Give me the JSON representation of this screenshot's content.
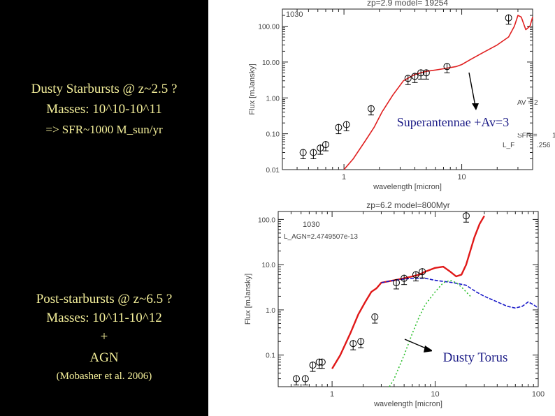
{
  "left_panel": {
    "block1": {
      "title": "Dusty Starbursts @ z~2.5 ?",
      "masses": "Masses: 10^10-10^11",
      "sfr": "=> SFR~1000 M_sun/yr"
    },
    "block2": {
      "title": "Post-starbursts @ z~6.5 ?",
      "masses": "Masses: 10^11-10^12",
      "plus": "+",
      "agn": "AGN",
      "citation": "(Mobasher et al. 2006)"
    },
    "text_color": "#f4ef9a",
    "background_color": "#000000"
  },
  "chart_data": [
    {
      "type": "scatter",
      "title": "zp=2.9  model= 19254",
      "corner_label": "1030",
      "xlabel": "wavelength [micron]",
      "ylabel": "Flux [mJansky]",
      "xscale": "log",
      "yscale": "log",
      "xlim": [
        0.3,
        40
      ],
      "ylim": [
        0.01,
        300
      ],
      "x_ticks": [
        {
          "v": 1,
          "label": "1"
        },
        {
          "v": 10,
          "label": "10"
        }
      ],
      "y_ticks": [
        {
          "v": 0.01,
          "label": "0.01"
        },
        {
          "v": 0.1,
          "label": "0.10"
        },
        {
          "v": 1,
          "label": "1.00"
        },
        {
          "v": 10,
          "label": "10.00"
        },
        {
          "v": 100,
          "label": "100.00"
        }
      ],
      "side_text": [
        "AV = 2",
        "SFR =",
        "1",
        ".256",
        "L_F"
      ],
      "callout": "Superantennae +Av=3",
      "series": [
        {
          "kind": "model",
          "color": "#e02020",
          "x": [
            1.0,
            1.2,
            1.5,
            1.8,
            2.1,
            2.6,
            3.2,
            4.0,
            5.0,
            6.0,
            7.0,
            8.0,
            9.0,
            10.0,
            12.0,
            15.0,
            20.0,
            25.0,
            28.0,
            30.0,
            32.0,
            35.0,
            38.0,
            40.0
          ],
          "y": [
            0.01,
            0.02,
            0.06,
            0.15,
            0.4,
            1.2,
            3.0,
            4.5,
            5.5,
            6.0,
            6.5,
            7.0,
            7.5,
            8.5,
            12.0,
            18.0,
            30.0,
            50.0,
            100.0,
            200.0,
            180.0,
            80.0,
            100.0,
            180.0
          ]
        },
        {
          "kind": "observed",
          "color": "#000000",
          "x": [
            0.45,
            0.55,
            0.63,
            0.7,
            0.9,
            1.05,
            1.7,
            3.5,
            4.0,
            4.5,
            5.0,
            7.5,
            25.0
          ],
          "y": [
            0.03,
            0.03,
            0.04,
            0.05,
            0.15,
            0.18,
            0.5,
            3.5,
            4.0,
            5.0,
            5.0,
            7.5,
            170.0
          ]
        }
      ]
    },
    {
      "type": "scatter",
      "title": "zp=6.2  model=800Myr",
      "corner_label": "1030",
      "subtitle": "L_AGN=2.4749507e-13",
      "xlabel": "wavelength [micron]",
      "ylabel": "Flux [mJansky]",
      "xscale": "log",
      "yscale": "log",
      "xlim": [
        0.3,
        100
      ],
      "ylim": [
        0.02,
        150
      ],
      "x_ticks": [
        {
          "v": 1,
          "label": "1"
        },
        {
          "v": 10,
          "label": "10"
        },
        {
          "v": 100,
          "label": "100"
        }
      ],
      "y_ticks": [
        {
          "v": 0.1,
          "label": "0.1"
        },
        {
          "v": 1,
          "label": "1.0"
        },
        {
          "v": 10,
          "label": "10.0"
        },
        {
          "v": 100,
          "label": "100.0"
        }
      ],
      "callout": "Dusty Torus",
      "series": [
        {
          "kind": "total",
          "color": "#e01818",
          "x": [
            1.0,
            1.2,
            1.5,
            1.8,
            2.1,
            2.4,
            2.7,
            3.0,
            4.0,
            5.0,
            6.0,
            7.0,
            8.0,
            10.0,
            12.0,
            14.0,
            16.0,
            18.0,
            20.0,
            24.0,
            27.0,
            30.0
          ],
          "y": [
            0.05,
            0.1,
            0.3,
            0.8,
            1.5,
            2.5,
            3.0,
            4.0,
            4.5,
            5.0,
            5.5,
            6.0,
            7.0,
            8.5,
            9.0,
            7.0,
            5.5,
            6.0,
            10.0,
            40.0,
            80.0,
            120.0
          ]
        },
        {
          "kind": "stellar",
          "color": "#1818c8",
          "x": [
            3.0,
            4.0,
            5.0,
            6.0,
            8.0,
            10.0,
            15.0,
            20.0,
            25.0,
            30.0,
            40.0,
            50.0,
            60.0,
            70.0,
            80.0,
            90.0,
            100.0
          ],
          "y": [
            4.0,
            4.5,
            4.8,
            5.0,
            5.0,
            4.5,
            4.0,
            3.5,
            2.5,
            2.0,
            1.5,
            1.2,
            1.1,
            1.2,
            1.5,
            1.3,
            1.1
          ]
        },
        {
          "kind": "torus",
          "color": "#30c030",
          "x": [
            3.6,
            4.0,
            5.0,
            6.0,
            7.0,
            8.0,
            10.0,
            12.0,
            14.0,
            16.0,
            18.0,
            20.0,
            22.0
          ],
          "y": [
            0.02,
            0.03,
            0.1,
            0.3,
            0.7,
            1.3,
            2.5,
            4.0,
            4.5,
            4.0,
            3.2,
            2.5,
            2.0
          ]
        },
        {
          "kind": "observed",
          "color": "#000000",
          "x": [
            0.45,
            0.55,
            0.65,
            0.75,
            0.8,
            1.6,
            1.9,
            2.6,
            4.2,
            5.0,
            6.5,
            7.5,
            20.0
          ],
          "y": [
            0.03,
            0.03,
            0.06,
            0.07,
            0.07,
            0.18,
            0.2,
            0.7,
            4.0,
            5.0,
            6.0,
            7.0,
            120.0
          ]
        }
      ]
    }
  ]
}
